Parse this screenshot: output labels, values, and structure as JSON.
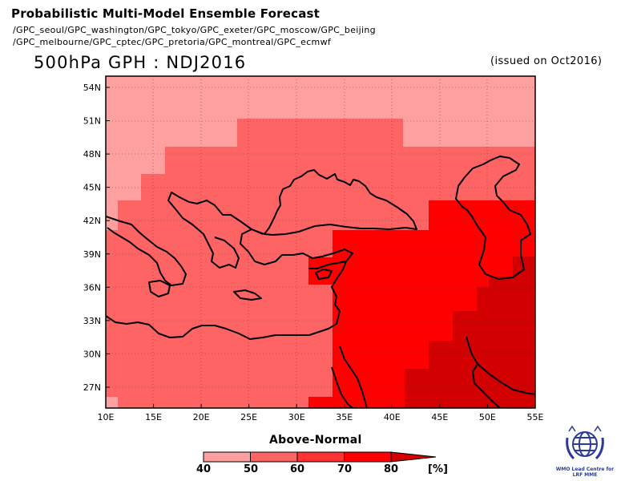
{
  "header": {
    "title": "Probabilistic Multi-Model Ensemble Forecast",
    "line1": "/GPC_seoul/GPC_washington/GPC_tokyo/GPC_exeter/GPC_moscow/GPC_beijing",
    "line2": "/GPC_melbourne/GPC_cptec/GPC_pretoria/GPC_montreal/GPC_ecmwf"
  },
  "map": {
    "title": "500hPa GPH : NDJ2016",
    "issued": "(issued on Oct2016)",
    "lat_labels": [
      "54N",
      "51N",
      "48N",
      "45N",
      "42N",
      "39N",
      "36N",
      "33N",
      "30N",
      "27N"
    ],
    "lon_labels": [
      "10E",
      "15E",
      "20E",
      "25E",
      "30E",
      "35E",
      "40E",
      "45E",
      "50E",
      "55E"
    ],
    "categories": [
      "40-50",
      "50-60",
      "60-70",
      "70-80",
      ">80"
    ],
    "colors": [
      "#ffa0a0",
      "#ff6464",
      "#ff3232",
      "#ff0000",
      "#d20000"
    ]
  },
  "colorbar": {
    "title": "Above-Normal",
    "ticks": [
      "40",
      "50",
      "60",
      "70",
      "80"
    ],
    "unit": "[%]",
    "colors": [
      "#ffa0a0",
      "#ff6464",
      "#ff3232",
      "#ff0000",
      "#d20000"
    ]
  },
  "logo": {
    "text": "WMO Lead Centre for LRF MME"
  }
}
